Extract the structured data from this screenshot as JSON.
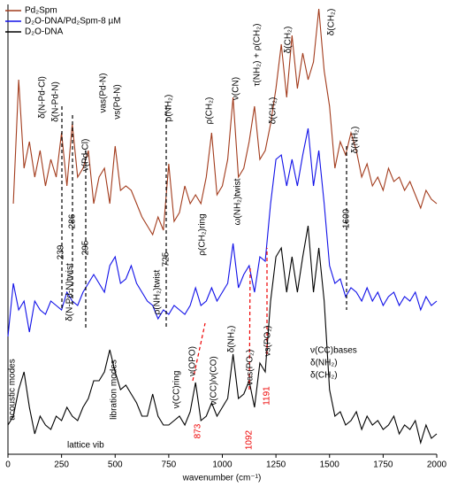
{
  "chart_data": {
    "type": "line",
    "xlabel": "wavenumber (cm⁻¹)",
    "xlim": [
      0,
      2000
    ],
    "xticks": [
      0,
      250,
      500,
      750,
      1000,
      1250,
      1500,
      1750,
      2000
    ],
    "ylim": [
      0,
      508
    ],
    "x": [
      0,
      25,
      50,
      75,
      100,
      125,
      150,
      175,
      200,
      225,
      250,
      275,
      300,
      325,
      350,
      375,
      400,
      425,
      450,
      475,
      500,
      525,
      550,
      575,
      600,
      625,
      650,
      675,
      700,
      725,
      750,
      775,
      800,
      825,
      850,
      875,
      900,
      925,
      950,
      975,
      1000,
      1025,
      1050,
      1075,
      1100,
      1125,
      1150,
      1175,
      1200,
      1225,
      1250,
      1275,
      1300,
      1325,
      1350,
      1375,
      1400,
      1425,
      1450,
      1475,
      1500,
      1525,
      1550,
      1575,
      1600,
      1625,
      1650,
      1675,
      1700,
      1725,
      1750,
      1775,
      1800,
      1825,
      1850,
      1875,
      1900,
      1925,
      1950,
      1975,
      2000
    ],
    "series": [
      {
        "name": "Pd₂Spm",
        "color": "#a23b1c",
        "values": [
          null,
          283,
          423,
          323,
          353,
          313,
          343,
          303,
          333,
          313,
          363,
          303,
          373,
          313,
          323,
          343,
          283,
          313,
          323,
          283,
          348,
          298,
          303,
          298,
          283,
          268,
          258,
          248,
          268,
          253,
          328,
          263,
          273,
          303,
          283,
          293,
          283,
          313,
          363,
          293,
          303,
          333,
          403,
          313,
          323,
          353,
          393,
          333,
          343,
          373,
          413,
          463,
          403,
          473,
          413,
          453,
          423,
          443,
          503,
          433,
          393,
          323,
          353,
          338,
          363,
          343,
          313,
          328,
          303,
          313,
          298,
          323,
          308,
          313,
          298,
          308,
          293,
          278,
          298,
          288,
          283
        ]
      },
      {
        "name": "D₂O-DNA/Pd₂Spm-8 µM",
        "color": "#1010e8",
        "values": [
          133,
          193,
          163,
          173,
          138,
          173,
          163,
          158,
          173,
          168,
          163,
          183,
          173,
          168,
          183,
          193,
          203,
          193,
          183,
          213,
          223,
          193,
          198,
          213,
          193,
          183,
          173,
          168,
          153,
          163,
          158,
          168,
          163,
          158,
          168,
          188,
          168,
          173,
          188,
          173,
          183,
          193,
          238,
          188,
          203,
          213,
          183,
          223,
          218,
          283,
          333,
          338,
          303,
          333,
          303,
          338,
          368,
          303,
          343,
          283,
          213,
          193,
          198,
          178,
          188,
          183,
          173,
          188,
          173,
          183,
          168,
          178,
          183,
          168,
          178,
          173,
          183,
          163,
          178,
          168,
          173
        ]
      },
      {
        "name": "D₂O-DNA",
        "color": "#000000",
        "values": [
          33,
          43,
          73,
          93,
          53,
          23,
          43,
          33,
          28,
          43,
          38,
          53,
          43,
          38,
          53,
          63,
          83,
          83,
          93,
          118,
          93,
          73,
          78,
          68,
          58,
          43,
          43,
          68,
          43,
          33,
          33,
          38,
          43,
          33,
          48,
          81,
          38,
          43,
          58,
          43,
          53,
          63,
          113,
          63,
          68,
          83,
          53,
          103,
          93,
          173,
          223,
          233,
          183,
          223,
          183,
          223,
          258,
          183,
          233,
          173,
          73,
          43,
          48,
          33,
          38,
          48,
          28,
          43,
          33,
          38,
          28,
          33,
          43,
          23,
          33,
          28,
          38,
          13,
          33,
          18,
          23
        ]
      }
    ],
    "annotations": [
      "δ(N-Pd-Cl)",
      "δ(N-Pd-N)",
      "ν(Pd-Cl)",
      "νas(Pd-N)",
      "νs(Pd-N)",
      "ρ(NH₂)",
      "ρ(CH₂)",
      "ν(CN)",
      "τ(NH₂) + ρ(CH₂)",
      "δ(CH₂)",
      "δ(CH₂)",
      "δ(CH₂)",
      "δ(NH₂)",
      "239",
      "286",
      "295",
      "725",
      "1600",
      "873",
      "1092",
      "1191",
      "δ(N-Pd-N)twist",
      "ρ(NH₂)twist",
      "ρ(CH₂)ring",
      "ω(NH₂)twist",
      "ν(CC)ring",
      "ν(OPO)",
      "ν(CC)/ν(CO)",
      "δ(NH₂)",
      "νas(PO₂)",
      "νs(PO₂)",
      "acoustic modes",
      "lattice vib",
      "libration modes",
      "ν(CC)bases",
      "δ(NH₂)",
      "δ(CH₂)"
    ]
  }
}
